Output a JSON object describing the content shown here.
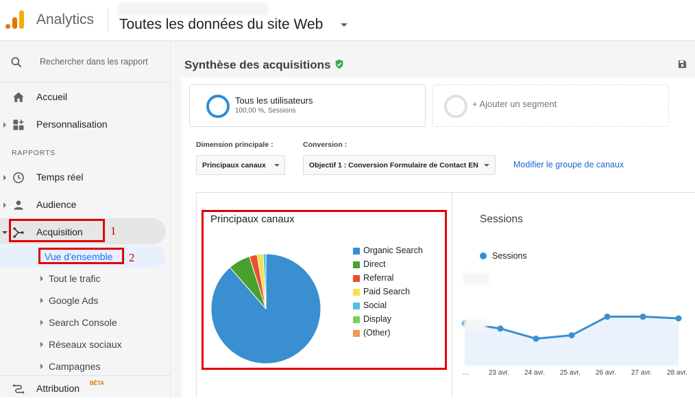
{
  "header": {
    "app_name": "Analytics",
    "view_name": "Toutes les données du site Web"
  },
  "sidebar": {
    "search_placeholder": "Rechercher dans les rapport",
    "home": "Accueil",
    "customization": "Personnalisation",
    "reports_heading": "RAPPORTS",
    "realtime": "Temps réel",
    "audience": "Audience",
    "acquisition": "Acquisition",
    "acquisition_sub": [
      "Vue d'ensemble",
      "Tout le trafic",
      "Google Ads",
      "Search Console",
      "Réseaux sociaux",
      "Campagnes"
    ],
    "attribution": "Attribution",
    "attribution_badge": "BÊTA",
    "annotation_1": "1",
    "annotation_2": "2"
  },
  "main": {
    "title": "Synthèse des acquisitions",
    "segment_all": "Tous les utilisateurs",
    "segment_all_sub": "100,00 %, Sessions",
    "segment_add": "+ Ajouter un segment",
    "primary_dimension_label": "Dimension principale :",
    "primary_dimension_value": "Principaux canaux",
    "conversion_label": "Conversion :",
    "conversion_value": "Objectif 1 : Conversion Formulaire de Contact EN",
    "modify_link": "Modifier le groupe de canaux"
  },
  "colors": {
    "organic": "#3a8fd1",
    "direct": "#4aa02c",
    "referral": "#e8512f",
    "paid": "#f4e14b",
    "social": "#4ec2e0",
    "display": "#74d15c",
    "other": "#ee9a54",
    "line": "#3a8fd1"
  },
  "chart_data": [
    {
      "type": "pie",
      "title": "Principaux canaux",
      "categories": [
        "Organic Search",
        "Direct",
        "Referral",
        "Paid Search",
        "Social",
        "Display",
        "(Other)"
      ],
      "values": [
        88.6,
        6.5,
        2.3,
        1.8,
        0.8,
        0,
        0
      ]
    },
    {
      "type": "line",
      "title": "Sessions",
      "x": [
        "…",
        "23 avr.",
        "24 avr.",
        "25 avr.",
        "26 avr.",
        "27 avr.",
        "28 avr."
      ],
      "series": [
        {
          "name": "Sessions",
          "values": [
            25,
            22,
            16,
            18,
            29,
            29,
            28
          ]
        }
      ],
      "ylim": [
        0,
        56
      ],
      "grid": false,
      "legend": "top-left"
    }
  ]
}
